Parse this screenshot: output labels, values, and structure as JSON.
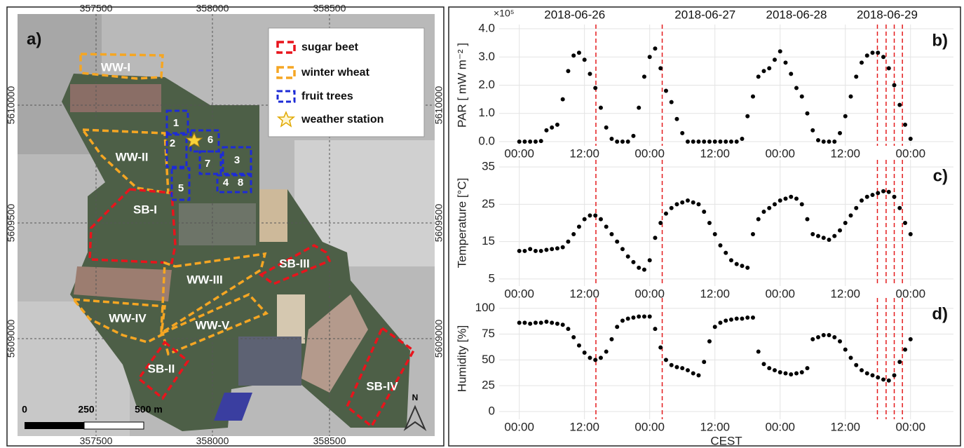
{
  "map": {
    "panel_label": "a)",
    "legend": [
      "sugar beet",
      "winter wheat",
      "fruit trees",
      "weather station"
    ],
    "fields": [
      "WW-I",
      "WW-II",
      "SB-I",
      "WW-III",
      "SB-III",
      "WW-IV",
      "WW-V",
      "SB-II",
      "SB-IV"
    ],
    "tree_plots": [
      "1",
      "2",
      "6",
      "7",
      "3",
      "4",
      "8",
      "5"
    ],
    "easting_labels": [
      "357500",
      "358000",
      "358500"
    ],
    "northing_labels": [
      "5610000",
      "5609500",
      "5609000"
    ],
    "scale_labels": [
      "0",
      "250",
      "500 m"
    ],
    "north": "N"
  },
  "chart_data": [
    {
      "type": "scatter",
      "panel_label": "b)",
      "ylabel": "PAR [ mW m⁻² ]",
      "multiplier": "×10⁵",
      "color": "#000000",
      "grid": true,
      "x": [
        0,
        1,
        2,
        3,
        4,
        5,
        6,
        7,
        8,
        9,
        10,
        11,
        12,
        13,
        14,
        15,
        16,
        17,
        18,
        19,
        20,
        21,
        22,
        23,
        24,
        25,
        26,
        27,
        28,
        29,
        30,
        31,
        32,
        33,
        34,
        35,
        36,
        37,
        38,
        39,
        40,
        41,
        42,
        43,
        44,
        45,
        46,
        47,
        48,
        49,
        50,
        51,
        52,
        53,
        54,
        55,
        56,
        57,
        58,
        59,
        60,
        61,
        62,
        63,
        64,
        65,
        66,
        67,
        68,
        69,
        70,
        71,
        72
      ],
      "values": [
        0,
        0,
        0,
        0,
        0.02,
        0.4,
        0.5,
        0.6,
        1.5,
        2.5,
        3.05,
        3.15,
        2.9,
        2.4,
        1.9,
        1.2,
        0.5,
        0.1,
        0,
        0,
        0,
        0.2,
        1.2,
        2.3,
        3.0,
        3.3,
        2.6,
        1.8,
        1.4,
        0.8,
        0.3,
        0,
        0,
        0,
        0,
        0,
        0,
        0,
        0,
        0,
        0,
        0.1,
        0.9,
        1.6,
        2.3,
        2.5,
        2.6,
        2.9,
        3.2,
        2.8,
        2.4,
        1.9,
        1.6,
        1.0,
        0.4,
        0.05,
        0,
        0,
        0,
        0.3,
        0.9,
        1.6,
        2.3,
        2.8,
        3.05,
        3.15,
        3.15,
        3.0,
        2.6,
        2.0,
        1.3,
        0.6,
        0.1
      ],
      "xlim": [
        -3.7,
        79.9
      ],
      "ylim": [
        -0.15,
        4.15
      ],
      "xticks": [
        {
          "value": 0,
          "label": "00:00"
        },
        {
          "value": 12,
          "label": "12:00"
        },
        {
          "value": 24,
          "label": "00:00"
        },
        {
          "value": 36,
          "label": "12:00"
        },
        {
          "value": 48,
          "label": "00:00"
        },
        {
          "value": 60,
          "label": "12:00"
        },
        {
          "value": 72,
          "label": "00:00"
        }
      ],
      "yticks": [
        {
          "value": 0,
          "label": "0.0"
        },
        {
          "value": 1,
          "label": "1.0"
        },
        {
          "value": 2,
          "label": "2.0"
        },
        {
          "value": 3,
          "label": "3.0"
        },
        {
          "value": 4,
          "label": "4.0"
        }
      ],
      "x2ticks": [
        {
          "value": 10.2,
          "label": "2018-06-26"
        },
        {
          "value": 34.2,
          "label": "2018-06-27"
        },
        {
          "value": 51,
          "label": "2018-06-28"
        },
        {
          "value": 67.7,
          "label": "2018-06-29"
        }
      ],
      "vlines": [
        14.1,
        26.3,
        65.9,
        67.5,
        69,
        70.5
      ],
      "vline_color": "#e41a1c"
    },
    {
      "type": "scatter",
      "panel_label": "c)",
      "ylabel": "Temperature [°C]",
      "color": "#000000",
      "grid": true,
      "x": [
        0,
        1,
        2,
        3,
        4,
        5,
        6,
        7,
        8,
        9,
        10,
        11,
        12,
        13,
        14,
        15,
        16,
        17,
        18,
        19,
        20,
        21,
        22,
        23,
        24,
        25,
        26,
        27,
        28,
        29,
        30,
        31,
        32,
        33,
        34,
        35,
        36,
        37,
        38,
        39,
        40,
        41,
        42,
        43,
        44,
        45,
        46,
        47,
        48,
        49,
        50,
        51,
        52,
        53,
        54,
        55,
        56,
        57,
        58,
        59,
        60,
        61,
        62,
        63,
        64,
        65,
        66,
        67,
        68,
        69,
        70,
        71,
        72
      ],
      "values": [
        12.5,
        12.5,
        13,
        12.5,
        12.5,
        12.8,
        13,
        13.2,
        13.5,
        15,
        17,
        19,
        21,
        22,
        22,
        21,
        19,
        17,
        15,
        13,
        11,
        9.5,
        8,
        7.5,
        10,
        16,
        20,
        22.5,
        24,
        25,
        25.5,
        26,
        25.5,
        25,
        23,
        20,
        17,
        14,
        12,
        10,
        9,
        8.5,
        8,
        17,
        21,
        23,
        24,
        25,
        26,
        26.5,
        27,
        26.5,
        25,
        21,
        17,
        16.5,
        16,
        15.5,
        16.5,
        18,
        20,
        22,
        24,
        26,
        27,
        27.5,
        28,
        28.5,
        28.3,
        27,
        24,
        20,
        17
      ],
      "xlim": [
        -3.7,
        79.9
      ],
      "ylim": [
        3.1,
        36.9
      ],
      "xticks": [
        {
          "value": 0,
          "label": "00:00"
        },
        {
          "value": 12,
          "label": "12:00"
        },
        {
          "value": 24,
          "label": "00:00"
        },
        {
          "value": 36,
          "label": "12:00"
        },
        {
          "value": 48,
          "label": "00:00"
        },
        {
          "value": 60,
          "label": "12:00"
        },
        {
          "value": 72,
          "label": "00:00"
        }
      ],
      "yticks": [
        5,
        15,
        25,
        35
      ],
      "vlines": [
        14.1,
        26.3,
        65.9,
        67.5,
        69,
        70.5
      ],
      "vline_color": "#e41a1c"
    },
    {
      "type": "scatter",
      "panel_label": "d)",
      "ylabel": "Humidity [%]",
      "xlabel": "CEST",
      "color": "#000000",
      "grid": true,
      "x": [
        0,
        1,
        2,
        3,
        4,
        5,
        6,
        7,
        8,
        9,
        10,
        11,
        12,
        13,
        14,
        15,
        16,
        17,
        18,
        19,
        20,
        21,
        22,
        23,
        24,
        25,
        26,
        27,
        28,
        29,
        30,
        31,
        32,
        33,
        34,
        35,
        36,
        37,
        38,
        39,
        40,
        41,
        42,
        43,
        44,
        45,
        46,
        47,
        48,
        49,
        50,
        51,
        52,
        53,
        54,
        55,
        56,
        57,
        58,
        59,
        60,
        61,
        62,
        63,
        64,
        65,
        66,
        67,
        68,
        69,
        70,
        71,
        72
      ],
      "values": [
        86,
        86,
        85,
        86,
        86,
        87,
        86,
        85,
        84,
        80,
        72,
        64,
        57,
        52,
        50,
        52,
        58,
        70,
        82,
        88,
        90,
        91,
        92,
        92,
        92,
        80,
        62,
        50,
        45,
        43,
        42,
        40,
        37,
        35,
        48,
        68,
        82,
        86,
        88,
        89,
        90,
        90,
        91,
        91,
        58,
        46,
        42,
        40,
        38,
        37,
        36,
        37,
        38,
        42,
        70,
        72,
        74,
        74,
        72,
        68,
        60,
        52,
        45,
        40,
        37,
        35,
        33,
        31,
        30,
        35,
        48,
        60,
        70
      ],
      "xlim": [
        -3.7,
        79.9
      ],
      "ylim": [
        -7.5,
        110
      ],
      "xticks": [
        {
          "value": 0,
          "label": "00:00"
        },
        {
          "value": 12,
          "label": "12:00"
        },
        {
          "value": 24,
          "label": "00:00"
        },
        {
          "value": 36,
          "label": "12:00"
        },
        {
          "value": 48,
          "label": "00:00"
        },
        {
          "value": 60,
          "label": "12:00"
        },
        {
          "value": 72,
          "label": "00:00"
        }
      ],
      "yticks": [
        0,
        25,
        50,
        75,
        100
      ],
      "vlines": [
        14.1,
        26.3,
        65.9,
        67.5,
        69,
        70.5
      ],
      "vline_color": "#e41a1c"
    }
  ]
}
